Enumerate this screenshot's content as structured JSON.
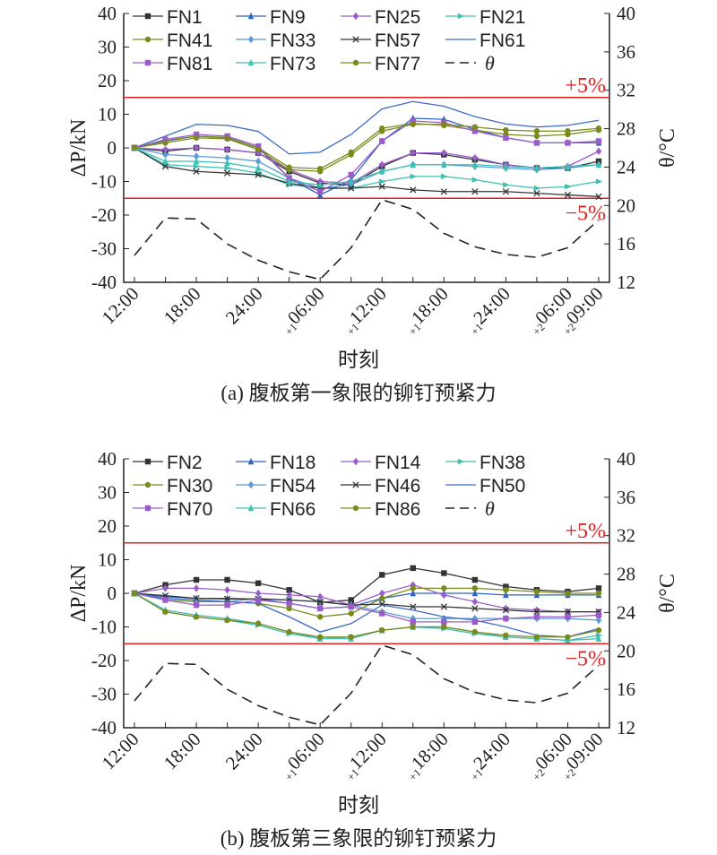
{
  "colors": {
    "limit": "#e02020",
    "axis": "#222222",
    "theta": "#222222"
  },
  "chart_data": [
    {
      "type": "line",
      "caption": "(a) 腹板第一象限的铆钉预紧力",
      "xlabel": "时刻",
      "ylabel": "ΔP/kN",
      "y2label": "θ/°C",
      "ylim": [
        -40,
        40
      ],
      "y2lim": [
        12,
        40
      ],
      "yticks": [
        "40",
        "30",
        "20",
        "10",
        "0",
        "-10",
        "-20",
        "-30",
        "-40"
      ],
      "y2ticks": [
        "40",
        "36",
        "32",
        "28",
        "24",
        "20",
        "16",
        "12"
      ],
      "xhours": [
        0,
        3,
        6,
        9,
        12,
        15,
        18,
        21,
        24,
        27,
        30,
        33,
        36,
        39,
        42,
        45
      ],
      "xticklabels": [
        {
          "h": 0,
          "pre": "",
          "t": "12:00"
        },
        {
          "h": 6,
          "pre": "",
          "t": "18:00"
        },
        {
          "h": 12,
          "pre": "",
          "t": "24:00"
        },
        {
          "h": 18,
          "pre": "+1",
          "t": "06:00"
        },
        {
          "h": 24,
          "pre": "+1",
          "t": "12:00"
        },
        {
          "h": 30,
          "pre": "+1",
          "t": "18:00"
        },
        {
          "h": 36,
          "pre": "+1",
          "t": "24:00"
        },
        {
          "h": 42,
          "pre": "+2",
          "t": "06:00"
        },
        {
          "h": 45,
          "pre": "+2",
          "t": "09:00"
        }
      ],
      "limits": [
        {
          "value": 15,
          "label": "+5%"
        },
        {
          "value": -15,
          "label": "−5%"
        }
      ],
      "series": [
        {
          "name": "FN1",
          "color": "#333333",
          "marker": "square",
          "values": [
            0,
            -1,
            0,
            -0.5,
            -1.5,
            -7,
            -10.5,
            -11,
            -5.5,
            -1.5,
            -2,
            -3.5,
            -5,
            -6,
            -6,
            -4
          ]
        },
        {
          "name": "FN9",
          "color": "#2f62c0",
          "marker": "triangle",
          "values": [
            0,
            2,
            3.5,
            3,
            0,
            -9,
            -14,
            -9.5,
            2,
            8.8,
            8.5,
            5.5,
            3,
            1.5,
            1.5,
            1.5
          ]
        },
        {
          "name": "FN25",
          "color": "#9b5cc9",
          "marker": "diamond",
          "values": [
            0,
            -0.5,
            0,
            -0.5,
            -1.5,
            -6.5,
            -10,
            -10.5,
            -5,
            -1.5,
            -1.5,
            -3,
            -5,
            -6,
            -5.5,
            -1
          ]
        },
        {
          "name": "FN21",
          "color": "#3dbfb2",
          "marker": "rtriangle",
          "values": [
            0,
            -5,
            -5.5,
            -6,
            -7.5,
            -11,
            -12,
            -12,
            -10,
            -8.5,
            -8.5,
            -9.5,
            -11,
            -12,
            -11.5,
            -10
          ]
        },
        {
          "name": "FN41",
          "color": "#7b8a1c",
          "marker": "circle",
          "values": [
            0,
            2.2,
            3.5,
            3.1,
            0,
            -5.8,
            -6.2,
            -1.3,
            5.8,
            7.3,
            6.7,
            5.3,
            4,
            3.5,
            4,
            5.3
          ]
        },
        {
          "name": "FN33",
          "color": "#5b9bd5",
          "marker": "diamond",
          "values": [
            0,
            -2,
            -2.5,
            -3,
            -4,
            -9,
            -12,
            -11,
            -7,
            -5,
            -5,
            -5.5,
            -6,
            -6.5,
            -6,
            -5
          ]
        },
        {
          "name": "FN57",
          "color": "#333333",
          "marker": "x",
          "values": [
            0,
            -5.5,
            -7,
            -7.5,
            -8,
            -10.5,
            -12,
            -12,
            -11.5,
            -12.5,
            -13,
            -13,
            -13,
            -13.5,
            -14,
            -14.5
          ]
        },
        {
          "name": "FN61",
          "color": "#3a6cc4",
          "marker": "none",
          "values": [
            0,
            3.5,
            7,
            6.7,
            4.9,
            -1.8,
            -1.3,
            4,
            11.6,
            13.8,
            12.4,
            9.3,
            7.1,
            6.2,
            6.7,
            8.2
          ]
        },
        {
          "name": "FN81",
          "color": "#9b5cc9",
          "marker": "square",
          "values": [
            0,
            2.5,
            4,
            3.5,
            0.5,
            -9,
            -13,
            -8,
            2,
            8,
            7.5,
            5,
            3,
            1.5,
            1.5,
            2
          ]
        },
        {
          "name": "FN73",
          "color": "#3dbfb2",
          "marker": "triangle",
          "values": [
            0,
            -4,
            -4,
            -4.5,
            -6,
            -10,
            -11,
            -10,
            -7,
            -5,
            -5,
            -5,
            -5.5,
            -6,
            -5.5,
            -5
          ]
        },
        {
          "name": "FN77",
          "color": "#7b8a1c",
          "marker": "circle",
          "values": [
            0,
            1.5,
            3,
            2.7,
            -0.5,
            -6.5,
            -7,
            -2,
            5,
            7,
            7,
            6.2,
            5.3,
            5,
            5,
            5.8
          ]
        }
      ],
      "theta": {
        "name": "θ",
        "values": [
          14.8,
          18.7,
          18.6,
          16,
          14.3,
          13.1,
          12.3,
          15.6,
          20.6,
          19.6,
          17.1,
          15.7,
          14.9,
          14.6,
          15.6,
          18.5
        ]
      }
    },
    {
      "type": "line",
      "caption": "(b) 腹板第三象限的铆钉预紧力",
      "xlabel": "时刻",
      "ylabel": "ΔP/kN",
      "y2label": "θ/°C",
      "ylim": [
        -40,
        40
      ],
      "y2lim": [
        12,
        40
      ],
      "yticks": [
        "40",
        "30",
        "20",
        "10",
        "0",
        "-10",
        "-20",
        "-30",
        "-40"
      ],
      "y2ticks": [
        "40",
        "36",
        "32",
        "28",
        "24",
        "20",
        "16",
        "12"
      ],
      "xhours": [
        0,
        3,
        6,
        9,
        12,
        15,
        18,
        21,
        24,
        27,
        30,
        33,
        36,
        39,
        42,
        45
      ],
      "xticklabels": [
        {
          "h": 0,
          "pre": "",
          "t": "12:00"
        },
        {
          "h": 6,
          "pre": "",
          "t": "18:00"
        },
        {
          "h": 12,
          "pre": "",
          "t": "24:00"
        },
        {
          "h": 18,
          "pre": "+1",
          "t": "06:00"
        },
        {
          "h": 24,
          "pre": "+1",
          "t": "12:00"
        },
        {
          "h": 30,
          "pre": "+1",
          "t": "18:00"
        },
        {
          "h": 36,
          "pre": "+1",
          "t": "24:00"
        },
        {
          "h": 42,
          "pre": "+2",
          "t": "06:00"
        },
        {
          "h": 45,
          "pre": "+2",
          "t": "09:00"
        }
      ],
      "limits": [
        {
          "value": 15,
          "label": "+5%"
        },
        {
          "value": -15,
          "label": "−5%"
        }
      ],
      "series": [
        {
          "name": "FN2",
          "color": "#333333",
          "marker": "square",
          "values": [
            0,
            2.5,
            4,
            4,
            3,
            1,
            -2.7,
            -2,
            5.5,
            7.5,
            6,
            4,
            2,
            1,
            0.5,
            1.5
          ]
        },
        {
          "name": "FN18",
          "color": "#2f62c0",
          "marker": "triangle",
          "values": [
            0,
            -1,
            -1.5,
            -1.5,
            -1.7,
            -3,
            -4.5,
            -4,
            -1.5,
            0,
            0,
            0,
            -0.5,
            -0.5,
            -0.5,
            -0.5
          ]
        },
        {
          "name": "FN14",
          "color": "#9b5cc9",
          "marker": "diamond",
          "values": [
            0,
            1.5,
            1.5,
            1,
            0,
            -0.5,
            -1,
            -3.5,
            0,
            2.5,
            -0.5,
            -2.5,
            -4.5,
            -5,
            -5.5,
            -5.5
          ]
        },
        {
          "name": "FN38",
          "color": "#3dbfb2",
          "marker": "rtriangle",
          "values": [
            0,
            -5.5,
            -7,
            -8,
            -9.5,
            -12,
            -13.5,
            -13,
            -11,
            -10,
            -10.5,
            -12,
            -13,
            -13.5,
            -14,
            -12.5
          ]
        },
        {
          "name": "FN30",
          "color": "#7b8a1c",
          "marker": "circle",
          "values": [
            0,
            -2,
            -2.5,
            -2.5,
            -3,
            -4.5,
            -7,
            -6,
            -1.5,
            1.5,
            1.5,
            1.5,
            1,
            0.5,
            0,
            0
          ]
        },
        {
          "name": "FN54",
          "color": "#5b9bd5",
          "marker": "diamond",
          "values": [
            0,
            -1.5,
            -2,
            -2.5,
            -1.5,
            -2,
            -2.5,
            -3.5,
            -5.5,
            -7.5,
            -7.5,
            -7.5,
            -7.5,
            -7.5,
            -7.5,
            -8
          ]
        },
        {
          "name": "FN46",
          "color": "#333333",
          "marker": "x",
          "values": [
            0,
            -0.7,
            -1.5,
            -1.7,
            -1.7,
            -2,
            -2.5,
            -3.5,
            -3.2,
            -4,
            -4,
            -4.5,
            -5,
            -5.5,
            -5.5,
            -5.5
          ]
        },
        {
          "name": "FN50",
          "color": "#3a6cc4",
          "marker": "none",
          "values": [
            0,
            -1.5,
            -2,
            -2.5,
            -3,
            -7,
            -11.5,
            -9,
            -3.5,
            -5,
            -7,
            -8,
            -10,
            -12.5,
            -13,
            -10.5
          ]
        },
        {
          "name": "FN70",
          "color": "#9b5cc9",
          "marker": "square",
          "values": [
            0,
            -2,
            -3.5,
            -3.5,
            -2,
            -3,
            -4.5,
            -4,
            -6,
            -8.5,
            -8.5,
            -8.5,
            -7.5,
            -7,
            -7,
            -6.5
          ]
        },
        {
          "name": "FN66",
          "color": "#3dbfb2",
          "marker": "triangle",
          "values": [
            0,
            -5,
            -6.5,
            -7.5,
            -9,
            -11.5,
            -13.5,
            -13.5,
            -11,
            -10,
            -10,
            -11.5,
            -13,
            -13.5,
            -14,
            -13.5
          ]
        },
        {
          "name": "FN86",
          "color": "#7b8a1c",
          "marker": "circle",
          "values": [
            0,
            -5.5,
            -7,
            -8,
            -9,
            -11.5,
            -13,
            -13,
            -11,
            -10,
            -10,
            -11.5,
            -12.5,
            -13,
            -13,
            -11
          ]
        }
      ],
      "theta": {
        "name": "θ",
        "values": [
          14.8,
          18.7,
          18.6,
          16,
          14.3,
          13.1,
          12.3,
          15.6,
          20.6,
          19.6,
          17.1,
          15.7,
          14.9,
          14.6,
          15.6,
          18.5
        ]
      }
    }
  ]
}
